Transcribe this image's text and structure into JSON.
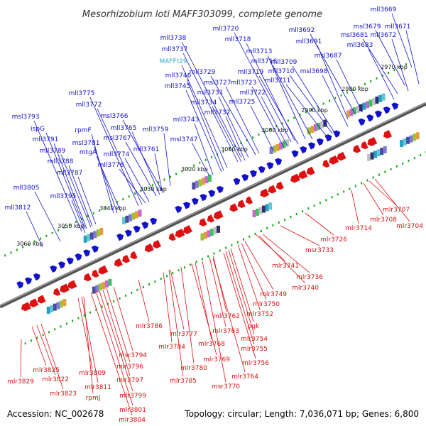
{
  "title": "Mesorhizobium loti MAFF303099, complete genome",
  "accession": "Accession: NC_002678",
  "summary": "Topology: circular; Length: 7,036,071 bp; Genes: 6,800",
  "colors": {
    "forward": "#1111cc",
    "reverse": "#dd1111",
    "rna": "#33aacc",
    "tick": "#11aa11",
    "backbone": "#777777"
  },
  "kbp_labels": [
    "2970 kbp",
    "2980 kbp",
    "2990 kbp",
    "3000 kbp",
    "3010 kbp",
    "3020 kbp",
    "3030 kbp",
    "3040 kbp",
    "3050 kbp",
    "3060 kbp"
  ],
  "forward_genes": [
    "mll3669",
    "mll3671",
    "msl3679",
    "mll3672",
    "msl3681",
    "mll3683",
    "mll3692",
    "mll3691",
    "msl3687",
    "mll3720",
    "mll3718",
    "mll3713",
    "mll3716",
    "mll3709",
    "mll3719",
    "mll3710",
    "msl3698",
    "mll3711",
    "mll3738",
    "mll3737",
    "MAFFt29",
    "mll3746",
    "mll3729",
    "mll3745",
    "msl3727",
    "mll3723",
    "mll3731",
    "mll3722",
    "mll3734",
    "mll3725",
    "mll3732",
    "mll3743",
    "msl3747",
    "mll3775",
    "mll3772",
    "msl3766",
    "mll3765",
    "msl3767",
    "mll3759",
    "msl3793",
    "ispG",
    "mll3791",
    "mll3789",
    "mll3788",
    "mll3787",
    "rpmF",
    "msl3781",
    "mtgA",
    "mll3774",
    "mll3776",
    "mll3761",
    "mll3805",
    "mll3795",
    "mll3812"
  ],
  "reverse_genes": [
    "mlr3707",
    "mlr3708",
    "mlr3714",
    "mlr3704",
    "mlr3726",
    "msr3733",
    "mlr3741",
    "mlr3736",
    "mlr3740",
    "mlr3749",
    "mlr3750",
    "mlr3752",
    "mlr3762",
    "pgk",
    "mlr3763",
    "mlr3754",
    "mlr3755",
    "mlr3786",
    "mlr3777",
    "mlr3768",
    "mlr3784",
    "mlr3769",
    "mlr3756",
    "mlr3780",
    "mlr3764",
    "mlr3785",
    "msr3770",
    "msr3794",
    "mlr3796",
    "mlr3825",
    "mlr3809",
    "mlr3797",
    "mlr3822",
    "mlr3829",
    "mlr3811",
    "mlr3823",
    "rpmJ",
    "mlr3799",
    "mlr3801",
    "mlr3804"
  ]
}
